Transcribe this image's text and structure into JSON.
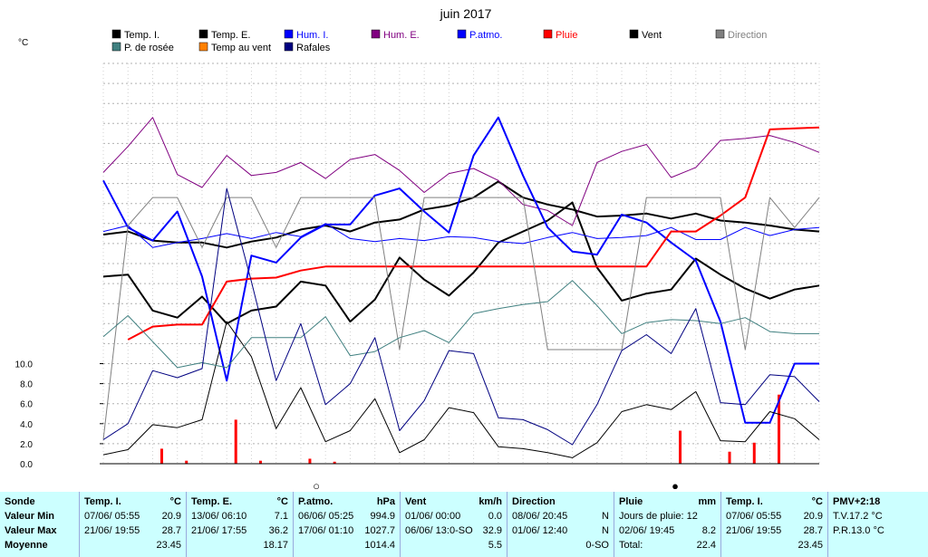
{
  "chart_data": {
    "type": "line",
    "title": "juin 2017",
    "ylabel": "°C",
    "yticks": [
      "0.0",
      "2.0",
      "4.0",
      "6.0",
      "8.0",
      "10.0"
    ],
    "ylim": [
      0,
      40
    ],
    "days": 30,
    "grid": true,
    "legend_position": "top",
    "legend": [
      {
        "name": "Temp. I.",
        "color": "#000000"
      },
      {
        "name": "Temp. E.",
        "color": "#000000"
      },
      {
        "name": "Hum. I.",
        "color": "#0000ff"
      },
      {
        "name": "Hum. E.",
        "color": "#800080"
      },
      {
        "name": "P.atmo.",
        "color": "#0000ff"
      },
      {
        "name": "Pluie",
        "color": "#ff0000"
      },
      {
        "name": "Vent",
        "color": "#000000"
      },
      {
        "name": "Direction",
        "color": "#808080"
      },
      {
        "name": "P. de rosée",
        "color": "#408080"
      },
      {
        "name": "Temp au vent",
        "color": "#ff8000"
      },
      {
        "name": "Rafales",
        "color": "#000080"
      }
    ],
    "series": [
      {
        "name": "Temp. I.",
        "color": "#000000",
        "width": 2,
        "x": [
          1,
          2,
          3,
          4,
          5,
          6,
          7,
          8,
          9,
          10,
          11,
          12,
          13,
          14,
          15,
          16,
          17,
          18,
          19,
          20,
          21,
          22,
          23,
          24,
          25,
          26,
          27,
          28,
          29,
          30
        ],
        "values": [
          22.9,
          23.2,
          22.3,
          22.1,
          22.1,
          21.6,
          22.2,
          22.6,
          23.4,
          23.8,
          23.2,
          24.1,
          24.4,
          25.4,
          25.8,
          26.6,
          28.2,
          26.6,
          25.9,
          25.4,
          24.7,
          24.8,
          25.0,
          24.5,
          25.0,
          24.3,
          24.1,
          23.8,
          23.4,
          23.2
        ]
      },
      {
        "name": "Temp. E.",
        "color": "#000000",
        "width": 2,
        "x": [
          1,
          2,
          3,
          4,
          5,
          6,
          7,
          8,
          9,
          10,
          11,
          12,
          13,
          14,
          15,
          16,
          17,
          18,
          19,
          20,
          21,
          22,
          23,
          24,
          25,
          26,
          27,
          28,
          29,
          30
        ],
        "values": [
          18.7,
          18.9,
          15.3,
          14.6,
          16.7,
          14.0,
          15.3,
          15.7,
          18.2,
          17.8,
          14.2,
          16.4,
          20.6,
          18.4,
          16.8,
          19.1,
          22.1,
          23.2,
          24.3,
          26.1,
          19.6,
          16.3,
          17.0,
          17.4,
          20.5,
          18.9,
          17.5,
          16.5,
          17.4,
          17.8
        ]
      },
      {
        "name": "Hum. I.",
        "color": "#0000ff",
        "width": 1,
        "x": [
          1,
          2,
          3,
          4,
          5,
          6,
          7,
          8,
          9,
          10,
          11,
          12,
          13,
          14,
          15,
          16,
          17,
          18,
          19,
          20,
          21,
          22,
          23,
          24,
          25,
          26,
          27,
          28,
          29,
          30
        ],
        "values": [
          23.2,
          23.8,
          21.6,
          22.1,
          22.5,
          23.0,
          22.5,
          23.1,
          22.7,
          24.0,
          22.5,
          22.2,
          22.5,
          22.3,
          22.7,
          22.6,
          22.2,
          22.0,
          22.6,
          23.1,
          22.5,
          22.6,
          22.8,
          23.6,
          22.4,
          22.4,
          23.6,
          22.8,
          23.4,
          23.6
        ]
      },
      {
        "name": "Hum. E.",
        "color": "#800080",
        "width": 1,
        "x": [
          1,
          2,
          3,
          4,
          5,
          6,
          7,
          8,
          9,
          10,
          11,
          12,
          13,
          14,
          15,
          16,
          17,
          18,
          19,
          20,
          21,
          22,
          23,
          24,
          25,
          26,
          27,
          28,
          29,
          30
        ],
        "values": [
          29.1,
          31.7,
          34.6,
          28.9,
          27.6,
          30.8,
          28.8,
          29.1,
          30.1,
          28.5,
          30.4,
          30.9,
          29.3,
          27.1,
          29.0,
          29.5,
          28.3,
          25.9,
          25.3,
          23.8,
          30.1,
          31.2,
          31.9,
          28.6,
          29.6,
          32.3,
          32.5,
          32.8,
          32.1,
          31.1
        ]
      },
      {
        "name": "P.atmo.",
        "color": "#0000ff",
        "width": 2,
        "x": [
          1,
          2,
          3,
          4,
          5,
          6,
          7,
          8,
          9,
          10,
          11,
          12,
          13,
          14,
          15,
          16,
          17,
          18,
          19,
          20,
          21,
          22,
          23,
          24,
          25,
          26,
          27,
          28,
          29,
          30
        ],
        "values": [
          28.3,
          23.6,
          22.3,
          25.2,
          18.7,
          8.3,
          20.8,
          20.1,
          22.6,
          23.9,
          23.9,
          26.8,
          27.5,
          25.2,
          23.1,
          30.8,
          34.6,
          28.8,
          23.6,
          21.2,
          20.9,
          24.9,
          24.1,
          22.1,
          20.3,
          14.2,
          4.1,
          4.1,
          10.0,
          10.0
        ]
      },
      {
        "name": "Pluie",
        "color": "#ff0000",
        "width": 2,
        "x": [
          2,
          3,
          4,
          5,
          6,
          7,
          8,
          9,
          10,
          11,
          12,
          13,
          14,
          15,
          16,
          17,
          18,
          19,
          20,
          21,
          22,
          23,
          24,
          25,
          26,
          27,
          28,
          29,
          30
        ],
        "values": [
          12.4,
          13.7,
          13.9,
          13.9,
          18.2,
          18.5,
          18.6,
          19.3,
          19.7,
          19.7,
          19.7,
          19.7,
          19.7,
          19.7,
          19.7,
          19.7,
          19.7,
          19.7,
          19.7,
          19.7,
          19.7,
          19.7,
          23.2,
          23.2,
          24.8,
          26.6,
          33.4,
          33.5,
          33.6
        ]
      },
      {
        "name": "Vent",
        "color": "#000000",
        "width": 1,
        "x": [
          1,
          2,
          3,
          4,
          5,
          6,
          7,
          8,
          9,
          10,
          11,
          12,
          13,
          14,
          15,
          16,
          17,
          18,
          19,
          20,
          21,
          22,
          23,
          24,
          25,
          26,
          27,
          28,
          29,
          30
        ],
        "values": [
          0.9,
          1.4,
          3.9,
          3.6,
          4.4,
          14.2,
          10.7,
          3.5,
          7.6,
          2.2,
          3.3,
          6.5,
          1.1,
          2.4,
          5.6,
          5.1,
          1.7,
          1.5,
          1.1,
          0.6,
          2.1,
          5.2,
          5.9,
          5.4,
          7.2,
          2.3,
          2.2,
          5.2,
          4.5,
          2.4
        ]
      },
      {
        "name": "Direction",
        "color": "#808080",
        "width": 1,
        "x": [
          1,
          2,
          3,
          4,
          5,
          6,
          7,
          8,
          9,
          10,
          11,
          12,
          13,
          14,
          15,
          16,
          17,
          18,
          19,
          20,
          21,
          22,
          23,
          24,
          25,
          26,
          27,
          28,
          29,
          30
        ],
        "values": [
          2.4,
          23.8,
          26.6,
          26.6,
          21.6,
          26.6,
          26.6,
          21.6,
          26.6,
          26.6,
          26.6,
          26.6,
          11.4,
          26.6,
          26.6,
          26.6,
          26.6,
          26.6,
          11.4,
          11.4,
          11.4,
          11.4,
          26.6,
          26.6,
          26.6,
          26.6,
          11.4,
          26.6,
          23.6,
          26.6
        ]
      },
      {
        "name": "P. de rosée",
        "color": "#408080",
        "width": 1,
        "x": [
          1,
          2,
          3,
          4,
          5,
          6,
          7,
          8,
          9,
          10,
          11,
          12,
          13,
          14,
          15,
          16,
          17,
          18,
          19,
          20,
          21,
          22,
          23,
          24,
          25,
          26,
          27,
          28,
          29,
          30
        ],
        "values": [
          12.7,
          14.8,
          12.2,
          9.6,
          10.1,
          9.6,
          12.6,
          12.6,
          12.6,
          14.7,
          10.8,
          11.2,
          12.6,
          13.3,
          12.1,
          15.0,
          15.5,
          15.9,
          16.2,
          18.3,
          15.8,
          13.0,
          14.1,
          14.4,
          14.3,
          14.0,
          14.6,
          13.2,
          13.0,
          13.0
        ]
      },
      {
        "name": "Rafales",
        "color": "#000080",
        "width": 1,
        "x": [
          1,
          2,
          3,
          4,
          5,
          6,
          7,
          8,
          9,
          10,
          11,
          12,
          13,
          14,
          15,
          16,
          17,
          18,
          19,
          20,
          21,
          22,
          23,
          24,
          25,
          26,
          27,
          28,
          29,
          30
        ],
        "values": [
          2.4,
          4.0,
          9.3,
          8.6,
          9.5,
          27.5,
          18.2,
          8.3,
          14.0,
          5.9,
          8.0,
          12.6,
          3.3,
          6.3,
          11.3,
          11.0,
          4.6,
          4.4,
          3.4,
          1.9,
          5.9,
          11.3,
          12.9,
          11.0,
          15.5,
          6.1,
          5.9,
          8.9,
          8.7,
          6.2
        ]
      }
    ],
    "rain_bars": {
      "name": "Pluie",
      "color": "#ff0000",
      "x": [
        3,
        4,
        6,
        7,
        9,
        10,
        24,
        26,
        27,
        28
      ],
      "values": [
        1.5,
        0.3,
        4.4,
        0.3,
        0.5,
        0.2,
        3.3,
        1.2,
        2.1,
        6.9
      ]
    }
  },
  "stats": {
    "row_labels": [
      "Sonde",
      "Valeur Min",
      "Valeur Max",
      "Moyenne"
    ],
    "columns": [
      {
        "title": "Temp. I.",
        "unit": "°C",
        "min_date": "07/06/",
        "min_time": "05:55",
        "min": "20.9",
        "max_date": "21/06/",
        "max_time": "19:55",
        "max": "28.7",
        "avg": "23.45"
      },
      {
        "title": "Temp. E.",
        "unit": "°C",
        "min_date": "13/06/",
        "min_time": "06:10",
        "min": "7.1",
        "max_date": "21/06/",
        "max_time": "17:55",
        "max": "36.2",
        "avg": "18.17"
      },
      {
        "title": "P.atmo.",
        "unit": "hPa",
        "min_date": "06/06/",
        "min_time": "05:25",
        "min": "994.9",
        "max_date": "17/06/",
        "max_time": "01:10",
        "max": "1027.7",
        "avg": "1014.4"
      },
      {
        "title": "Vent",
        "unit": "km/h",
        "min_date": "01/06/",
        "min_time": "00:00",
        "min": "0.0",
        "max_date": "06/06/",
        "max_time": "13:0-SO",
        "max": "32.9",
        "avg": "5.5"
      },
      {
        "title": "Direction",
        "unit": "",
        "min_date": "08/06/",
        "min_time": "20:45",
        "min": "N",
        "max_date": "01/06/",
        "max_time": "12:40",
        "max": "N",
        "avg": "0-SO"
      }
    ],
    "rain": {
      "title": "Pluie",
      "unit": "mm",
      "days_label": "Jours de pluie: 12",
      "max_date": "02/06/",
      "max_time": "19:45",
      "max": "8.2",
      "total_label": "Total:",
      "total": "22.4"
    },
    "temp_i2": {
      "title": "Temp. I.",
      "unit": "°C",
      "min_date": "07/06/",
      "min_time": "05:55",
      "min": "20.9",
      "max_date": "21/06/",
      "max_time": "19:55",
      "max": "28.7",
      "avg": "23.45"
    },
    "pmv": {
      "title": "PMV+2:18",
      "tv": "T.V.17.2 °C",
      "pr": "P.R.13.0 °C"
    }
  }
}
